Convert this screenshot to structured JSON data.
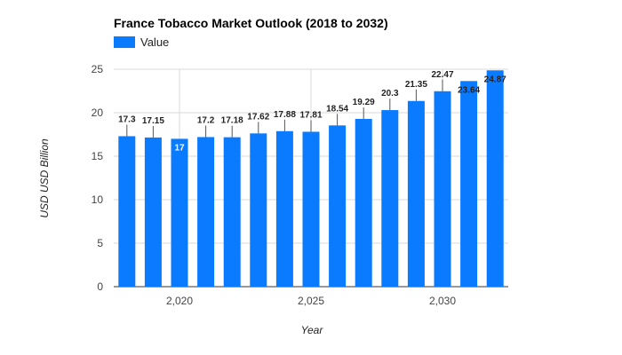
{
  "chart_data": {
    "type": "bar",
    "title": "France Tobacco Market Outlook (2018 to 2032)",
    "xlabel": "Year",
    "ylabel": "USD USD Billion",
    "legend": {
      "position": "top-left",
      "entries": [
        "Value"
      ]
    },
    "grid": true,
    "ylim": [
      0,
      25
    ],
    "yticks": [
      "0",
      "5",
      "10",
      "15",
      "20",
      "25"
    ],
    "xticks": [
      {
        "x": 2020,
        "label": "2,020"
      },
      {
        "x": 2025,
        "label": "2,025"
      },
      {
        "x": 2030,
        "label": "2,030"
      }
    ],
    "x": [
      2018,
      2019,
      2020,
      2021,
      2022,
      2023,
      2024,
      2025,
      2026,
      2027,
      2028,
      2029,
      2030,
      2031,
      2032
    ],
    "series": [
      {
        "name": "Value",
        "color": "#0a7bff",
        "values": [
          17.3,
          17.15,
          17,
          17.2,
          17.18,
          17.62,
          17.88,
          17.81,
          18.54,
          19.29,
          20.3,
          21.35,
          22.47,
          23.64,
          24.87
        ],
        "labels": [
          "17.3",
          "17.15",
          "17",
          "17.2",
          "17.18",
          "17.62",
          "17.88",
          "17.81",
          "18.54",
          "19.29",
          "20.3",
          "21.35",
          "22.47",
          "23.64",
          "24.87"
        ]
      }
    ]
  }
}
